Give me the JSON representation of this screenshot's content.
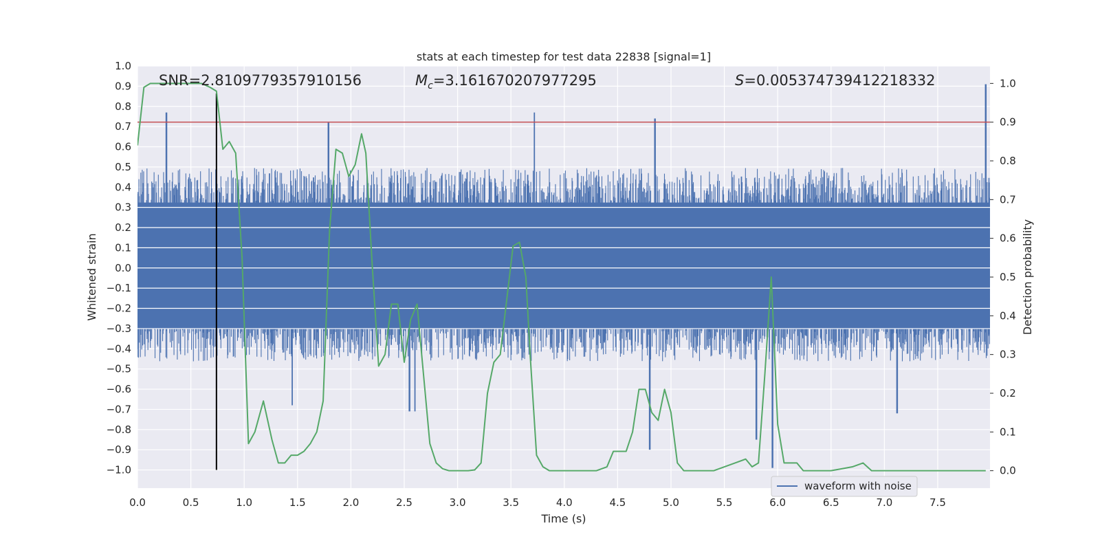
{
  "chart_data": {
    "type": "line",
    "title": "stats at each timestep for test data 22838 [signal=1]",
    "xlabel": "Time (s)",
    "ylabel": "Whitened strain",
    "y2label": "Detection probability",
    "xlim": [
      0.0,
      7.99
    ],
    "ylim": [
      -1.09,
      1.0
    ],
    "y2lim": [
      -0.045,
      1.045
    ],
    "xticks": [
      "0.0",
      "0.5",
      "1.0",
      "1.5",
      "2.0",
      "2.5",
      "3.0",
      "3.5",
      "4.0",
      "4.5",
      "5.0",
      "5.5",
      "6.0",
      "6.5",
      "7.0",
      "7.5"
    ],
    "yticks": [
      "1.0",
      "0.9",
      "0.8",
      "0.7",
      "0.6",
      "0.5",
      "0.4",
      "0.3",
      "0.2",
      "0.1",
      "0.0",
      "−0.1",
      "−0.2",
      "−0.3",
      "−0.4",
      "−0.5",
      "−0.6",
      "−0.7",
      "−0.8",
      "−0.9",
      "−1.0"
    ],
    "y2ticks": [
      "1.0",
      "0.9",
      "0.8",
      "0.7",
      "0.6",
      "0.5",
      "0.4",
      "0.3",
      "0.2",
      "0.1",
      "0.0"
    ],
    "stats": {
      "snr_label": "SNR=2.8109779357910156",
      "mc_symbol": "M",
      "mc_sub": "c",
      "mc_value": "=3.161670207977295",
      "s_symbol": "S",
      "s_value": "=0.005374739412218332"
    },
    "threshold_y2": 0.9,
    "marker_x": 0.74,
    "legend": {
      "label": "waveform with noise",
      "placement": "lower-right"
    },
    "colors": {
      "waveform": "#4c72b0",
      "probability": "#55a868",
      "threshold": "#c44e52",
      "marker": "#000000",
      "background": "#eaeaf2",
      "grid": "#ffffff"
    },
    "series": [
      {
        "name": "waveform with noise",
        "kind": "noise-envelope",
        "x_range": [
          0.0,
          7.99
        ],
        "typical_upper": 0.45,
        "typical_lower": -0.42,
        "peaks": [
          {
            "x": 0.27,
            "y": 0.77
          },
          {
            "x": 1.79,
            "y": 0.72
          },
          {
            "x": 3.72,
            "y": 0.77
          },
          {
            "x": 4.85,
            "y": 0.74
          },
          {
            "x": 7.95,
            "y": 0.91
          },
          {
            "x": 2.55,
            "y": -0.71
          },
          {
            "x": 2.6,
            "y": -0.71
          },
          {
            "x": 4.8,
            "y": -0.9
          },
          {
            "x": 5.8,
            "y": -0.85
          },
          {
            "x": 5.95,
            "y": -0.99
          },
          {
            "x": 7.12,
            "y": -0.72
          },
          {
            "x": 1.45,
            "y": -0.68
          }
        ]
      },
      {
        "name": "detection probability",
        "axis": "y2",
        "x": [
          0.0,
          0.06,
          0.12,
          0.18,
          0.3,
          0.45,
          0.6,
          0.68,
          0.74,
          0.8,
          0.86,
          0.92,
          0.98,
          1.04,
          1.1,
          1.18,
          1.26,
          1.32,
          1.38,
          1.44,
          1.5,
          1.56,
          1.62,
          1.68,
          1.74,
          1.8,
          1.86,
          1.92,
          1.98,
          2.04,
          2.1,
          2.14,
          2.2,
          2.26,
          2.32,
          2.38,
          2.44,
          2.5,
          2.56,
          2.62,
          2.68,
          2.74,
          2.8,
          2.86,
          2.92,
          2.98,
          3.04,
          3.1,
          3.16,
          3.22,
          3.28,
          3.34,
          3.4,
          3.46,
          3.52,
          3.58,
          3.64,
          3.68,
          3.74,
          3.8,
          3.86,
          3.92,
          3.98,
          4.1,
          4.3,
          4.4,
          4.46,
          4.52,
          4.58,
          4.64,
          4.7,
          4.76,
          4.82,
          4.88,
          4.94,
          5.0,
          5.06,
          5.12,
          5.18,
          5.24,
          5.3,
          5.4,
          5.5,
          5.6,
          5.7,
          5.76,
          5.82,
          5.88,
          5.94,
          6.0,
          6.06,
          6.12,
          6.18,
          6.24,
          6.3,
          6.4,
          6.5,
          6.6,
          6.7,
          6.8,
          6.88,
          6.94,
          7.0,
          7.06,
          7.12,
          7.18,
          7.24,
          7.3,
          7.4,
          7.6,
          7.8,
          7.95
        ],
        "y": [
          0.84,
          0.99,
          1.0,
          1.0,
          1.0,
          1.0,
          1.0,
          0.99,
          0.98,
          0.83,
          0.85,
          0.82,
          0.55,
          0.07,
          0.1,
          0.18,
          0.08,
          0.02,
          0.02,
          0.04,
          0.04,
          0.05,
          0.07,
          0.1,
          0.18,
          0.62,
          0.83,
          0.82,
          0.76,
          0.79,
          0.87,
          0.82,
          0.53,
          0.27,
          0.3,
          0.43,
          0.43,
          0.28,
          0.39,
          0.43,
          0.25,
          0.07,
          0.02,
          0.005,
          0.0,
          0.0,
          0.0,
          0.0,
          0.002,
          0.02,
          0.2,
          0.28,
          0.3,
          0.44,
          0.58,
          0.59,
          0.5,
          0.3,
          0.04,
          0.01,
          0.0,
          0.0,
          0.0,
          0.0,
          0.0,
          0.01,
          0.05,
          0.05,
          0.05,
          0.1,
          0.21,
          0.21,
          0.15,
          0.13,
          0.21,
          0.15,
          0.02,
          0.0,
          0.0,
          0.0,
          0.0,
          0.0,
          0.01,
          0.02,
          0.03,
          0.01,
          0.02,
          0.25,
          0.5,
          0.12,
          0.02,
          0.02,
          0.02,
          0.0,
          0.0,
          0.0,
          0.0,
          0.005,
          0.01,
          0.02,
          0.0,
          0.0,
          0.0,
          0.0,
          0.0,
          0.0,
          0.0,
          0.0,
          0.0,
          0.0,
          0.0,
          0.0
        ]
      }
    ]
  }
}
